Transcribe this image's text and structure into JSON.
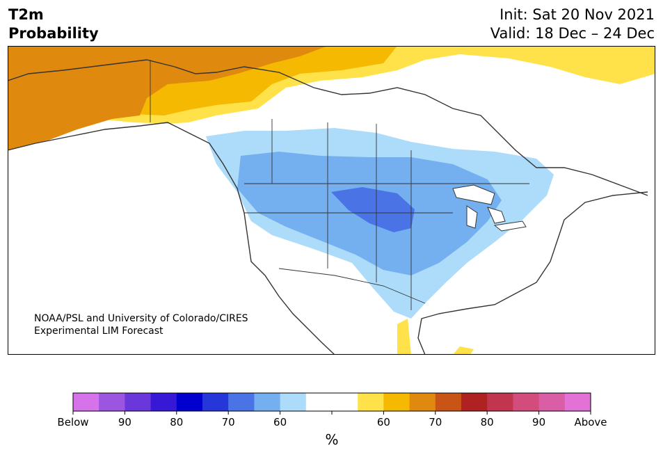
{
  "title": {
    "line1": "T2m",
    "line2": "Probability"
  },
  "init": {
    "line1": "Init: Sat 20 Nov 2021",
    "line2": "Valid: 18 Dec – 24 Dec"
  },
  "credit": {
    "line1": "NOAA/PSL and University of Colorado/CIRES",
    "line2": "Experimental LIM Forecast"
  },
  "colorbar": {
    "colors": [
      "#d672ea",
      "#9b55e0",
      "#6a38da",
      "#3618d6",
      "#0000cf",
      "#2637d9",
      "#4a74e6",
      "#74aff0",
      "#addbfa",
      "#ffffff",
      "#ffffff",
      "#ffe24a",
      "#f4b900",
      "#e0890f",
      "#c85516",
      "#b02222",
      "#c1364e",
      "#d24c7c",
      "#d95ea6",
      "#e272d6"
    ],
    "labels": [
      "Below",
      "90",
      "80",
      "70",
      "60",
      "",
      "60",
      "70",
      "80",
      "90",
      "Above"
    ],
    "unit": "%"
  },
  "map_colors": {
    "below_60": "#addbfa",
    "below_70": "#74aff0",
    "below_80": "#4a74e6",
    "above_60": "#ffe24a",
    "above_70": "#f4b900",
    "above_80": "#e0890f"
  },
  "icons": {
    "map_outline": "north-america-coastline-icon"
  }
}
